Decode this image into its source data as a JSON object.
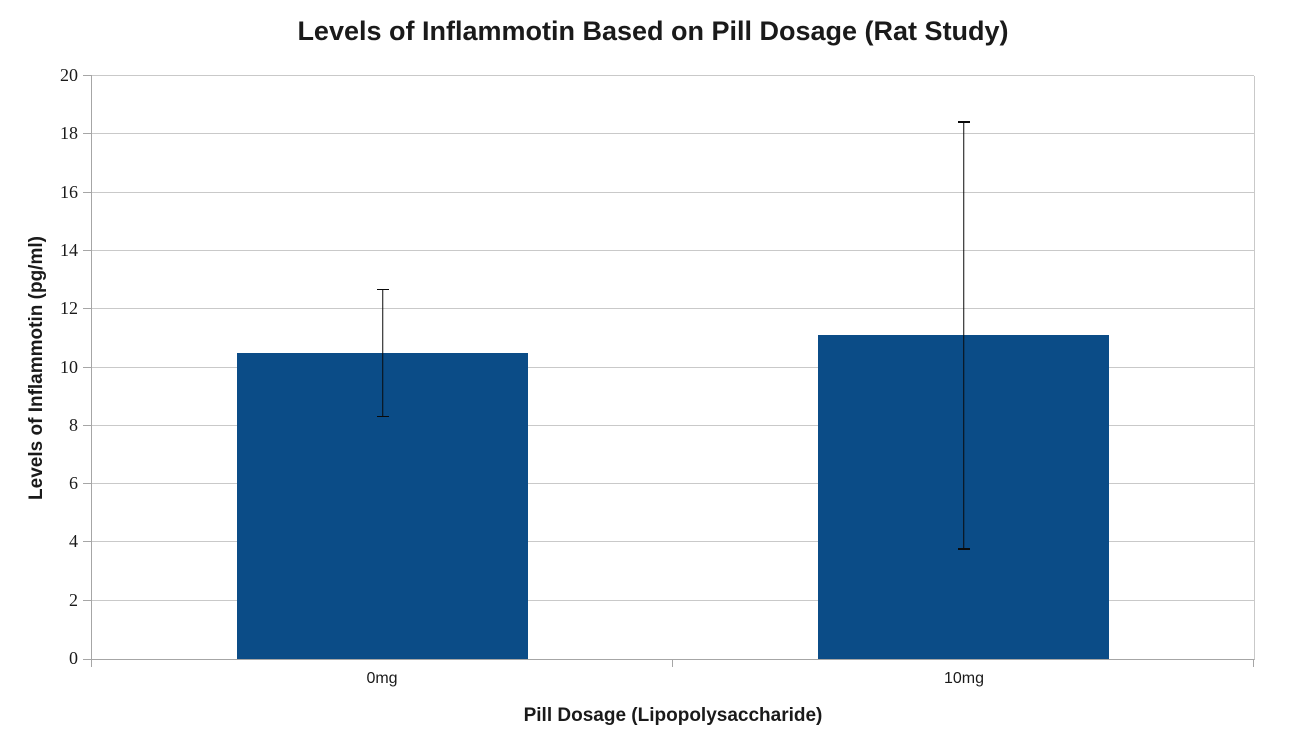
{
  "chart_data": {
    "type": "bar",
    "title": "Levels of Inflammotin Based on Pill Dosage (Rat Study)",
    "xlabel": "Pill Dosage (Lipopolysaccharide)",
    "ylabel": "Levels of Inflammotin (pg/ml)",
    "categories": [
      "0mg",
      "10mg"
    ],
    "values": [
      10.5,
      11.1
    ],
    "error_bars": {
      "low": [
        8.3,
        3.75
      ],
      "high": [
        12.7,
        18.45
      ]
    },
    "ylim": [
      0,
      20
    ],
    "yticks": [
      0,
      2,
      4,
      6,
      8,
      10,
      12,
      14,
      16,
      18,
      20
    ],
    "grid": true,
    "legend": false,
    "bar_width_fraction": 0.5,
    "colors": {
      "bar": "#0b4c87",
      "gridline": "#c9c9c9",
      "axis": "#a6a6a6",
      "error_bar": "#0a0a0a",
      "text": "#1a1a1a",
      "background": "#ffffff"
    }
  }
}
